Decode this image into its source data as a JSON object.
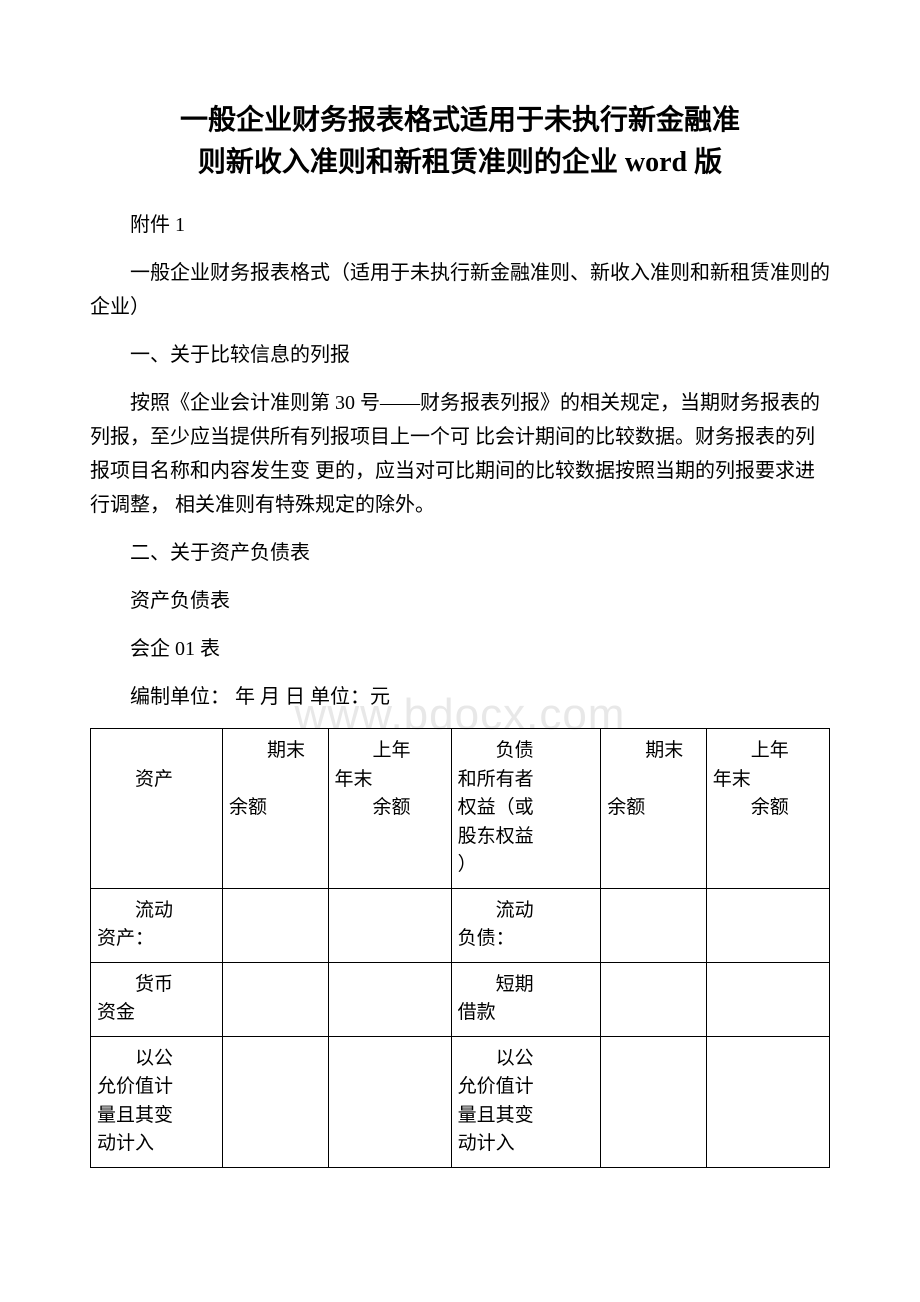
{
  "title_line1": "一般企业财务报表格式适用于未执行新金融准",
  "title_line2": "则新收入准则和新租赁准则的企业 word 版",
  "attachment": "附件 1",
  "subtitle": "一般企业财务报表格式（适用于未执行新金融准则、新收入准则和新租赁准则的企业）",
  "section1_title": "一、关于比较信息的列报",
  "section1_body": "按照《企业会计准则第 30 号——财务报表列报》的相关规定，当期财务报表的列报，至少应当提供所有列报项目上一个可 比会计期间的比较数据。财务报表的列报项目名称和内容发生变 更的，应当对可比期间的比较数据按照当期的列报要求进行调整， 相关准则有特殊规定的除外。",
  "section2_title": "二、关于资产负债表",
  "balance_sheet_label": "资产负债表",
  "form_code": "会企 01 表",
  "form_header": "编制单位：  年  月  日 单位：元",
  "watermark_text": "www.bdocx.com",
  "table": {
    "columns": {
      "asset": "资产",
      "end_balance": "期末余额",
      "prev_year": "上年年末余额",
      "liability": "负债和所有者权益（或股东权益）",
      "end_balance2": "期末余额",
      "prev_year2": "上年年末余额"
    },
    "header_row": {
      "c1_l1": "资产",
      "c2_l1": "期末",
      "c2_l2": "余额",
      "c3_l1": "上年",
      "c3_l2": "年末",
      "c3_l3": "余额",
      "c4_l1": "负债",
      "c4_l2": "和所有者",
      "c4_l3": "权益（或",
      "c4_l4": "股东权益",
      "c4_l5": "）",
      "c5_l1": "期末",
      "c5_l2": "余额",
      "c6_l1": "上年",
      "c6_l2": "年末",
      "c6_l3": "余额"
    },
    "rows": [
      {
        "asset_l1": "流动",
        "asset_l2": "资产：",
        "liab_l1": "流动",
        "liab_l2": "负债："
      },
      {
        "asset_l1": "货币",
        "asset_l2": "资金",
        "liab_l1": "短期",
        "liab_l2": "借款"
      },
      {
        "asset_l1": "以公",
        "asset_l2": "允价值计",
        "asset_l3": "量且其变",
        "asset_l4": "动计入",
        "liab_l1": "以公",
        "liab_l2": "允价值计",
        "liab_l3": "量且其变",
        "liab_l4": "动计入"
      }
    ]
  },
  "colors": {
    "text": "#000000",
    "background": "#ffffff",
    "border": "#000000",
    "watermark": "#e8e8e8"
  },
  "typography": {
    "title_fontsize": 28,
    "body_fontsize": 20,
    "table_fontsize": 19,
    "watermark_fontsize": 44,
    "font_family": "SimSun"
  }
}
